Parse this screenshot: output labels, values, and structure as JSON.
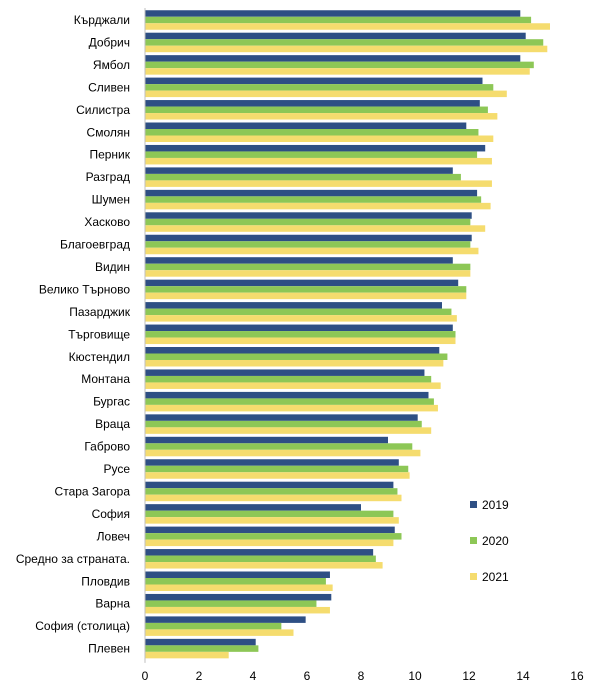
{
  "chart_data": {
    "type": "bar",
    "orientation": "horizontal",
    "title": "",
    "xlabel": "",
    "ylabel": "",
    "xlim": [
      0,
      16
    ],
    "x_ticks": [
      "0",
      "2",
      "4",
      "6",
      "8",
      "10",
      "12",
      "14",
      "16"
    ],
    "grid": false,
    "legend": "right",
    "categories": [
      "Кърджали",
      "Добрич",
      "Ямбол",
      "Сливен",
      "Силистра",
      "Смолян",
      "Перник",
      "Разград",
      "Шумен",
      "Хасково",
      "Благоевград",
      "Видин",
      "Велико Търново",
      "Пазарджик",
      "Търговище",
      "Кюстендил",
      "Монтана",
      "Бургас",
      "Враца",
      "Габрово",
      "Русе",
      "Стара Загора",
      "София",
      "Ловеч",
      "Средно за страната.",
      "Пловдив",
      "Варна",
      "София (столица)",
      "Плевен"
    ],
    "series": [
      {
        "name": "2019",
        "color": "#2E4F84",
        "values": [
          13.9,
          14.1,
          13.9,
          12.5,
          12.4,
          11.9,
          12.6,
          11.4,
          12.3,
          12.1,
          12.1,
          11.4,
          11.6,
          11.0,
          11.4,
          10.9,
          10.35,
          10.5,
          10.1,
          9.0,
          9.4,
          9.2,
          8.0,
          9.25,
          8.45,
          6.85,
          6.9,
          5.95,
          4.1
        ]
      },
      {
        "name": "2020",
        "color": "#8DC756",
        "values": [
          14.3,
          14.75,
          14.4,
          12.9,
          12.7,
          12.35,
          12.3,
          11.7,
          12.45,
          12.05,
          12.05,
          12.05,
          11.9,
          11.35,
          11.5,
          11.2,
          10.6,
          10.7,
          10.25,
          9.9,
          9.75,
          9.35,
          9.2,
          9.5,
          8.55,
          6.7,
          6.35,
          5.05,
          4.2
        ]
      },
      {
        "name": "2021",
        "color": "#F5DC6E",
        "values": [
          15.0,
          14.9,
          14.25,
          13.4,
          13.05,
          12.9,
          12.85,
          12.85,
          12.8,
          12.6,
          12.35,
          12.05,
          11.9,
          11.55,
          11.5,
          11.05,
          10.95,
          10.85,
          10.6,
          10.2,
          9.8,
          9.5,
          9.4,
          9.2,
          8.8,
          6.95,
          6.85,
          5.5,
          3.1
        ]
      }
    ]
  }
}
